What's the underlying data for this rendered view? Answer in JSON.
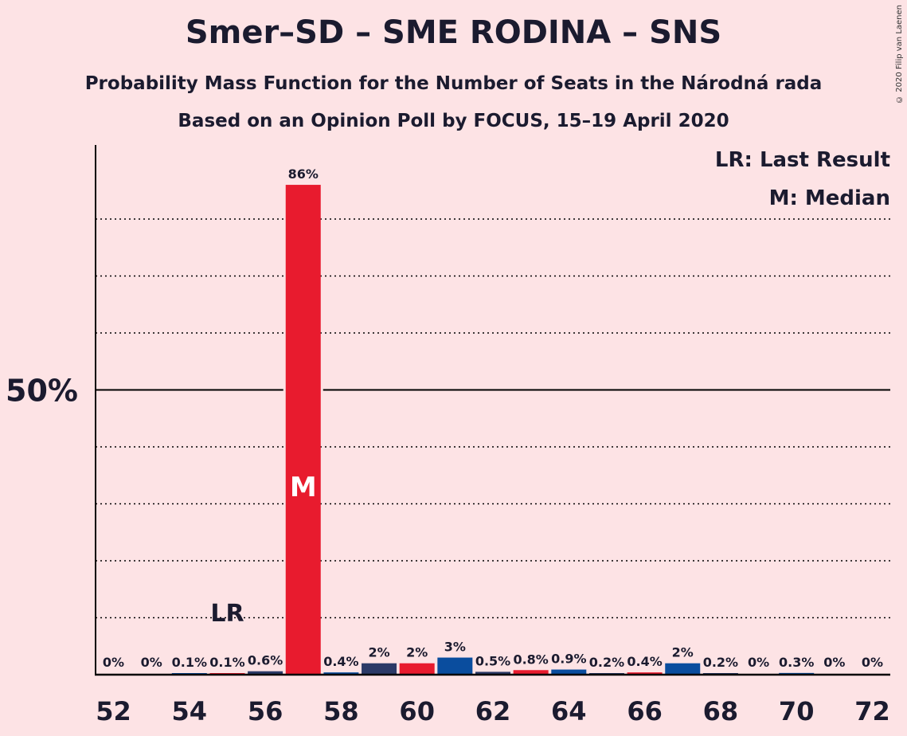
{
  "title": "Smer–SD – SME RODINA – SNS",
  "subtitle": "Probability Mass Function for the Number of Seats in the Národná rada",
  "subtitle2": "Based on an Opinion Poll by FOCUS, 15–19 April 2020",
  "copyright": "© 2020 Filip van Laenen",
  "legend": {
    "last_result": "LR: Last Result",
    "median": "M: Median"
  },
  "colors": {
    "background": "#fde3e5",
    "red": "#e81b2e",
    "navy": "#2b3a67",
    "blue": "#0a4d9e",
    "axis": "#000000"
  },
  "chart_data": {
    "type": "bar",
    "title": "Smer–SD – SME RODINA – SNS",
    "xlabel": "",
    "ylabel": "",
    "x": [
      52,
      53,
      54,
      55,
      56,
      57,
      58,
      59,
      60,
      61,
      62,
      63,
      64,
      65,
      66,
      67,
      68,
      69,
      70,
      71,
      72
    ],
    "values": [
      0,
      0,
      0.1,
      0.1,
      0.6,
      86,
      0.4,
      2,
      2,
      3,
      0.5,
      0.8,
      0.9,
      0.2,
      0.4,
      2,
      0.2,
      0,
      0.3,
      0,
      0
    ],
    "labels": [
      "0%",
      "0%",
      "0.1%",
      "0.1%",
      "0.6%",
      "86%",
      "0.4%",
      "2%",
      "2%",
      "3%",
      "0.5%",
      "0.8%",
      "0.9%",
      "0.2%",
      "0.4%",
      "2%",
      "0.2%",
      "0%",
      "0.3%",
      "0%",
      "0%"
    ],
    "bar_colors": [
      "red",
      "navy",
      "blue",
      "red",
      "navy",
      "red",
      "blue",
      "navy",
      "red",
      "blue",
      "navy",
      "red",
      "blue",
      "navy",
      "red",
      "blue",
      "navy",
      "red",
      "blue",
      "navy",
      "red"
    ],
    "x_tick_labels": [
      "52",
      "54",
      "56",
      "58",
      "60",
      "62",
      "64",
      "66",
      "68",
      "70",
      "72"
    ],
    "y_tick_label": "50%",
    "y_tick_value": 50,
    "ylim": [
      0,
      93
    ],
    "gridlines": [
      10,
      20,
      30,
      40,
      60,
      70,
      80
    ],
    "median_seat": 57,
    "median_marker": "M",
    "last_result_seat": 55,
    "last_result_marker": "LR"
  }
}
